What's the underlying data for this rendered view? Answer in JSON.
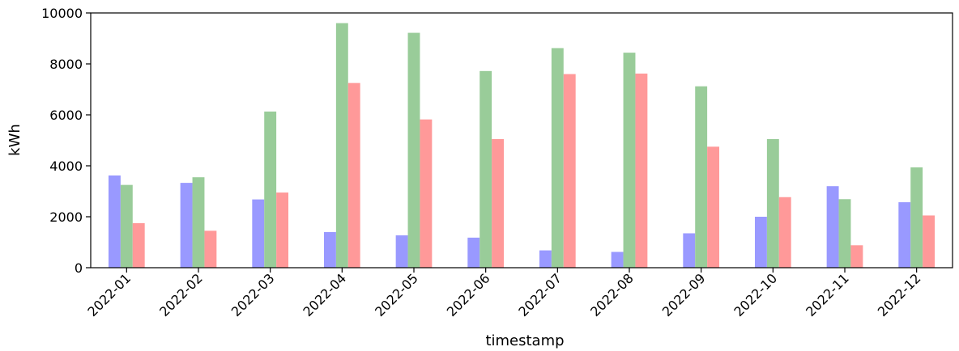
{
  "chart_data": {
    "type": "bar",
    "xlabel": "timestamp",
    "ylabel": "kWh",
    "ylim": [
      0,
      10000
    ],
    "yticks": [
      0,
      2000,
      4000,
      6000,
      8000,
      10000
    ],
    "grid": false,
    "legend": "none",
    "categories": [
      "2022-01",
      "2022-02",
      "2022-03",
      "2022-04",
      "2022-05",
      "2022-06",
      "2022-07",
      "2022-08",
      "2022-09",
      "2022-10",
      "2022-11",
      "2022-12"
    ],
    "series": [
      {
        "color": "#9999ff",
        "values": [
          3620,
          3330,
          2680,
          1400,
          1270,
          1180,
          680,
          620,
          1350,
          2000,
          3200,
          2570
        ]
      },
      {
        "color": "#99cc99",
        "values": [
          3250,
          3550,
          6130,
          9600,
          9220,
          7720,
          8620,
          8440,
          7120,
          5050,
          2690,
          3940
        ]
      },
      {
        "color": "#ff9999",
        "values": [
          1750,
          1450,
          2950,
          7250,
          5820,
          5050,
          7600,
          7620,
          4750,
          2770,
          880,
          2050
        ]
      }
    ]
  }
}
